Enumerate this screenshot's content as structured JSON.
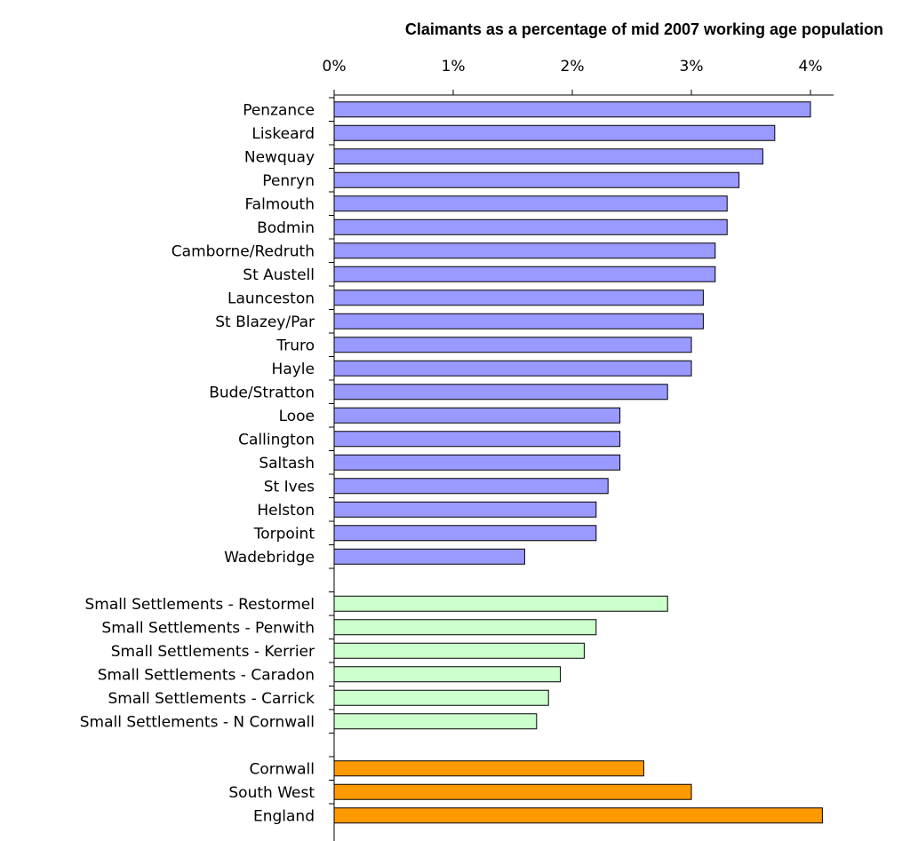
{
  "chart_data": {
    "type": "bar",
    "orientation": "horizontal",
    "title": "Claimants as a percentage of mid 2007 working age population",
    "xlabel": "",
    "ylabel": "",
    "xlim": [
      0,
      4.2
    ],
    "x_ticks": [
      "0%",
      "1%",
      "2%",
      "3%",
      "4%"
    ],
    "grid": false,
    "legend": "none",
    "colors": {
      "towns": "#9999ff",
      "small_settlements": "#ccffcc",
      "comparators": "#ff9900",
      "outline": "#000000"
    },
    "groups": [
      {
        "color_key": "towns",
        "categories": [
          "Penzance",
          "Liskeard",
          "Newquay",
          "Penryn",
          "Falmouth",
          "Bodmin",
          "Camborne/Redruth",
          "St Austell",
          "Launceston",
          "St Blazey/Par",
          "Truro",
          "Hayle",
          "Bude/Stratton",
          "Looe",
          "Callington",
          "Saltash",
          "St Ives",
          "Helston",
          "Torpoint",
          "Wadebridge"
        ],
        "values": [
          4.0,
          3.7,
          3.6,
          3.4,
          3.3,
          3.3,
          3.2,
          3.2,
          3.1,
          3.1,
          3.0,
          3.0,
          2.8,
          2.4,
          2.4,
          2.4,
          2.3,
          2.2,
          2.2,
          1.6
        ]
      },
      {
        "color_key": "small_settlements",
        "categories": [
          "Small Settlements - Restormel",
          "Small Settlements - Penwith",
          "Small Settlements - Kerrier",
          "Small Settlements - Caradon",
          "Small Settlements - Carrick",
          "Small Settlements - N Cornwall"
        ],
        "values": [
          2.8,
          2.2,
          2.1,
          1.9,
          1.8,
          1.7
        ]
      },
      {
        "color_key": "comparators",
        "categories": [
          "Cornwall",
          "South West",
          "England"
        ],
        "values": [
          2.6,
          3.0,
          4.1
        ]
      }
    ]
  }
}
